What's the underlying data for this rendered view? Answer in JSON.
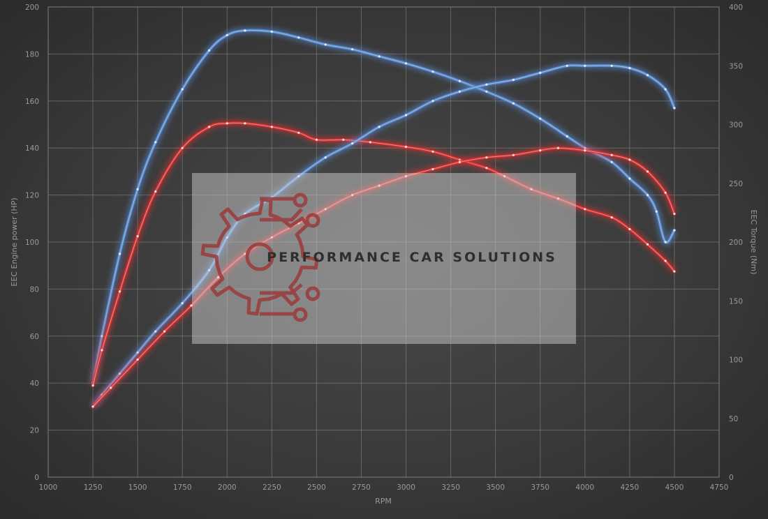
{
  "chart_data": {
    "type": "line",
    "xlabel": "RPM",
    "ylabel": "EEC Engine power (HP)",
    "y2label": "EEC Torque (Nm)",
    "xlim": [
      1000,
      4750
    ],
    "ylim": [
      0,
      200
    ],
    "y2lim": [
      0,
      400
    ],
    "x_ticks": [
      "1000",
      "1250",
      "1500",
      "1750",
      "2000",
      "2250",
      "2500",
      "2750",
      "3000",
      "3250",
      "3500",
      "3750",
      "4000",
      "4250",
      "4500",
      "4750"
    ],
    "y_ticks": [
      "0",
      "20",
      "40",
      "60",
      "80",
      "100",
      "120",
      "140",
      "160",
      "180",
      "200"
    ],
    "y2_ticks": [
      "0",
      "50",
      "100",
      "150",
      "200",
      "250",
      "300",
      "350",
      "400"
    ],
    "grid": true,
    "series": [
      {
        "axis": "y2",
        "color": "#5b8fd9",
        "points": [
          [
            1250,
            80
          ],
          [
            1300,
            120
          ],
          [
            1400,
            190
          ],
          [
            1500,
            245
          ],
          [
            1600,
            285
          ],
          [
            1750,
            330
          ],
          [
            1900,
            363
          ],
          [
            2000,
            376
          ],
          [
            2100,
            380
          ],
          [
            2250,
            379
          ],
          [
            2400,
            374
          ],
          [
            2550,
            368
          ],
          [
            2700,
            364
          ],
          [
            2850,
            358
          ],
          [
            3000,
            352
          ],
          [
            3150,
            345
          ],
          [
            3300,
            337
          ],
          [
            3450,
            328
          ],
          [
            3600,
            318
          ],
          [
            3750,
            305
          ],
          [
            3900,
            290
          ],
          [
            4000,
            280
          ],
          [
            4150,
            268
          ],
          [
            4250,
            254
          ],
          [
            4350,
            240
          ],
          [
            4400,
            226
          ],
          [
            4450,
            200
          ],
          [
            4500,
            210
          ]
        ]
      },
      {
        "axis": "y2",
        "color": "#e03030",
        "points": [
          [
            1250,
            78
          ],
          [
            1300,
            108
          ],
          [
            1400,
            158
          ],
          [
            1500,
            205
          ],
          [
            1600,
            243
          ],
          [
            1750,
            280
          ],
          [
            1900,
            298
          ],
          [
            2000,
            301
          ],
          [
            2100,
            301
          ],
          [
            2250,
            298
          ],
          [
            2400,
            293
          ],
          [
            2500,
            287
          ],
          [
            2650,
            287
          ],
          [
            2800,
            285
          ],
          [
            3000,
            281
          ],
          [
            3150,
            277
          ],
          [
            3300,
            270
          ],
          [
            3450,
            263
          ],
          [
            3550,
            256
          ],
          [
            3700,
            245
          ],
          [
            3850,
            237
          ],
          [
            4000,
            228
          ],
          [
            4150,
            221
          ],
          [
            4250,
            211
          ],
          [
            4350,
            198
          ],
          [
            4450,
            184
          ],
          [
            4500,
            175
          ]
        ]
      },
      {
        "axis": "y",
        "color": "#5b8fd9",
        "points": [
          [
            1250,
            30
          ],
          [
            1300,
            35
          ],
          [
            1400,
            44
          ],
          [
            1500,
            53
          ],
          [
            1600,
            62
          ],
          [
            1750,
            74
          ],
          [
            1900,
            88
          ],
          [
            2000,
            102
          ],
          [
            2100,
            112
          ],
          [
            2250,
            119
          ],
          [
            2400,
            128
          ],
          [
            2550,
            136
          ],
          [
            2700,
            142
          ],
          [
            2850,
            149
          ],
          [
            3000,
            154
          ],
          [
            3150,
            160
          ],
          [
            3300,
            164
          ],
          [
            3450,
            167
          ],
          [
            3600,
            169
          ],
          [
            3750,
            172
          ],
          [
            3900,
            175
          ],
          [
            4000,
            175
          ],
          [
            4150,
            175
          ],
          [
            4250,
            174
          ],
          [
            4350,
            171
          ],
          [
            4450,
            165
          ],
          [
            4500,
            157
          ]
        ]
      },
      {
        "axis": "y",
        "color": "#e03030",
        "points": [
          [
            1250,
            30
          ],
          [
            1350,
            38
          ],
          [
            1500,
            50
          ],
          [
            1650,
            62
          ],
          [
            1800,
            73
          ],
          [
            1950,
            85
          ],
          [
            2100,
            95
          ],
          [
            2250,
            102
          ],
          [
            2400,
            108
          ],
          [
            2550,
            114
          ],
          [
            2700,
            120
          ],
          [
            2850,
            124
          ],
          [
            3000,
            128
          ],
          [
            3150,
            131
          ],
          [
            3300,
            134
          ],
          [
            3450,
            136
          ],
          [
            3600,
            137
          ],
          [
            3750,
            139
          ],
          [
            3850,
            140
          ],
          [
            4000,
            139
          ],
          [
            4150,
            137
          ],
          [
            4250,
            135
          ],
          [
            4350,
            130
          ],
          [
            4450,
            121
          ],
          [
            4500,
            112
          ]
        ]
      }
    ]
  },
  "watermark": {
    "text": "PERFORMANCE CAR SOLUTIONS",
    "logo_icon": "gear-circuit-icon",
    "logo_color": "#9a3a3a"
  }
}
